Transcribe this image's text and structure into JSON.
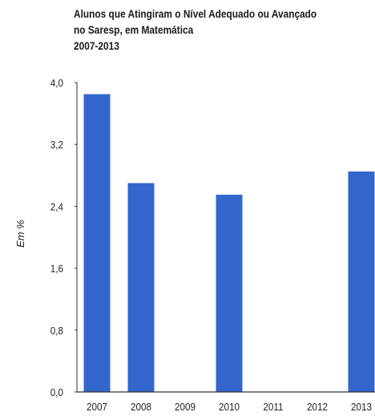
{
  "chart_data": {
    "type": "bar",
    "title_lines": [
      "Alunos que Atingiram o Nível Adequado ou Avançado",
      "no Saresp, em Matemática",
      "2007-2013"
    ],
    "ylabel": "Em %",
    "xlabel": "",
    "categories": [
      "2007",
      "2008",
      "2009",
      "2010",
      "2011",
      "2012",
      "2013"
    ],
    "values": [
      3.85,
      2.7,
      null,
      2.55,
      null,
      null,
      2.85
    ],
    "ylim": [
      0,
      4.0
    ],
    "yticks": [
      "0,0",
      "0,8",
      "1,6",
      "2,4",
      "3,2",
      "4,0"
    ],
    "ytick_values": [
      0,
      0.8,
      1.6,
      2.4,
      3.2,
      4.0
    ],
    "grid": false,
    "legend": "none",
    "colors": {
      "bar": "#3366cc",
      "axis": "#333333",
      "text": "#222222"
    }
  }
}
